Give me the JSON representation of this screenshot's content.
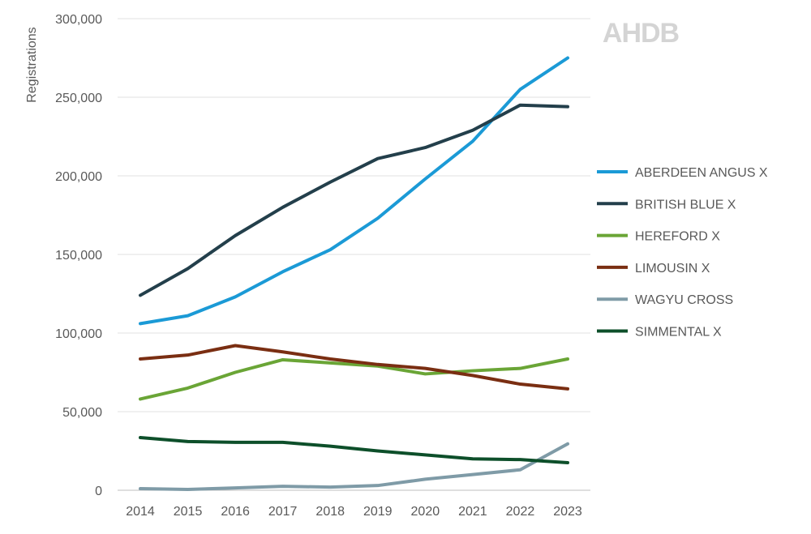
{
  "logo": "AHDB",
  "chart_data": {
    "type": "line",
    "title": "",
    "xlabel": "",
    "ylabel": "Registrations",
    "ylim": [
      0,
      300000
    ],
    "yticks": [
      0,
      50000,
      100000,
      150000,
      200000,
      250000,
      300000
    ],
    "ytick_labels": [
      "0",
      "50,000",
      "100,000",
      "150,000",
      "200,000",
      "250,000",
      "300,000"
    ],
    "grid": true,
    "legend_position": "right",
    "categories": [
      "2014",
      "2015",
      "2016",
      "2017",
      "2018",
      "2019",
      "2020",
      "2021",
      "2022",
      "2023"
    ],
    "series": [
      {
        "name": "ABERDEEN ANGUS X",
        "color": "#1b9ad6",
        "values": [
          106000,
          111000,
          123000,
          139000,
          153000,
          173000,
          198000,
          222000,
          255000,
          275000
        ]
      },
      {
        "name": "BRITISH BLUE X",
        "color": "#233f4b",
        "values": [
          124000,
          141000,
          162000,
          180000,
          196000,
          211000,
          218000,
          229000,
          245000,
          244000
        ]
      },
      {
        "name": "HEREFORD X",
        "color": "#6aa536",
        "values": [
          58000,
          65000,
          75000,
          83000,
          81000,
          79000,
          74000,
          76000,
          77500,
          83500
        ]
      },
      {
        "name": "LIMOUSIN X",
        "color": "#7a2e12",
        "values": [
          83500,
          86000,
          92000,
          88000,
          83500,
          80000,
          77500,
          73000,
          67500,
          64500
        ]
      },
      {
        "name": "WAGYU CROSS",
        "color": "#7f9ba7",
        "values": [
          1000,
          500,
          1500,
          2500,
          2000,
          3000,
          7000,
          10000,
          13000,
          29500
        ]
      },
      {
        "name": "SIMMENTAL X",
        "color": "#0d4f2a",
        "values": [
          33500,
          31000,
          30500,
          30500,
          28000,
          25000,
          22500,
          20000,
          19500,
          17500
        ]
      }
    ]
  }
}
